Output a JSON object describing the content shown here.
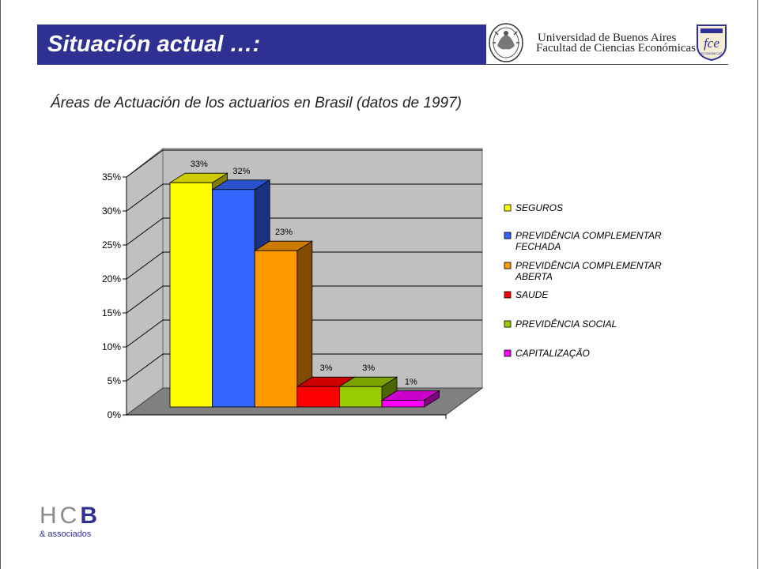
{
  "slide": {
    "title": "Situación actual …:",
    "subtitle": "Áreas de Actuación de los actuarios en Brasil (datos de 1997)"
  },
  "header": {
    "university_line1": "Universidad de Buenos Aires",
    "university_line2": "Facultad de Ciencias Económicas",
    "fce_logo_text": "fce",
    "fce_logo_subtext": "ECONOMICAS"
  },
  "footer": {
    "logo_letters": "HC",
    "logo_b": "B",
    "logo_sub": "& associados"
  },
  "chart_data": {
    "type": "bar",
    "style": "3d",
    "categories": [
      "SEGUROS",
      "PREVIDÊNCIA COMPLEMENTAR FECHADA",
      "PREVIDÊNCIA COMPLEMENTAR ABERTA",
      "SAUDE",
      "PREVIDÊNCIA SOCIAL",
      "CAPITALIZAÇÃO"
    ],
    "legend": [
      {
        "lines": [
          "SEGUROS"
        ],
        "color": "#ffff00"
      },
      {
        "lines": [
          "PREVIDÊNCIA COMPLEMENTAR",
          "FECHADA"
        ],
        "color": "#3366ff"
      },
      {
        "lines": [
          "PREVIDÊNCIA COMPLEMENTAR",
          "ABERTA"
        ],
        "color": "#ff9900"
      },
      {
        "lines": [
          "SAUDE"
        ],
        "color": "#ff0000"
      },
      {
        "lines": [
          "PREVIDÊNCIA SOCIAL"
        ],
        "color": "#99cc00"
      },
      {
        "lines": [
          "CAPITALIZAÇÃO"
        ],
        "color": "#ff00ff"
      }
    ],
    "values": [
      33,
      32,
      23,
      3,
      3,
      1
    ],
    "data_labels": [
      "33%",
      "32%",
      "23%",
      "3%",
      "3%",
      "1%"
    ],
    "colors": [
      "#ffff00",
      "#3366ff",
      "#ff9900",
      "#ff0000",
      "#99cc00",
      "#ff00ff"
    ],
    "ylim": [
      0,
      35
    ],
    "yticks": [
      "0%",
      "5%",
      "10%",
      "15%",
      "20%",
      "25%",
      "30%",
      "35%"
    ],
    "grid": true,
    "legend_position": "right"
  }
}
